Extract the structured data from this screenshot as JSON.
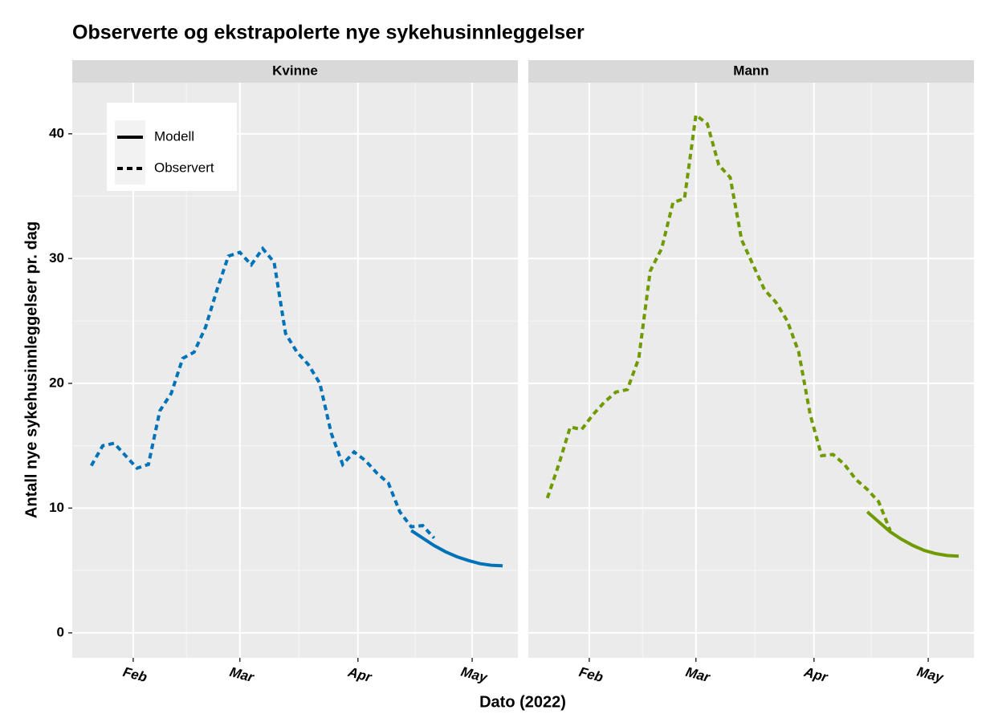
{
  "chart_data": {
    "type": "line",
    "title": "Observerte og ekstrapolerte nye sykehusinnleggelser",
    "x_label": "Dato (2022)",
    "y_label": "Antall nye sykehusinnleggelser pr. dag",
    "x": [
      "2022-01-21",
      "2022-01-24",
      "2022-01-27",
      "2022-01-30",
      "2022-02-02",
      "2022-02-05",
      "2022-02-08",
      "2022-02-11",
      "2022-02-14",
      "2022-02-17",
      "2022-02-20",
      "2022-02-23",
      "2022-02-26",
      "2022-03-01",
      "2022-03-04",
      "2022-03-07",
      "2022-03-10",
      "2022-03-13",
      "2022-03-16",
      "2022-03-19",
      "2022-03-22",
      "2022-03-25",
      "2022-03-28",
      "2022-03-31",
      "2022-04-03",
      "2022-04-06",
      "2022-04-09",
      "2022-04-12",
      "2022-04-15",
      "2022-04-18",
      "2022-04-21",
      "2022-04-24",
      "2022-04-27",
      "2022-04-30",
      "2022-05-03",
      "2022-05-06",
      "2022-05-09"
    ],
    "xlim": [
      "2022-01-16",
      "2022-05-13"
    ],
    "xticks": [
      {
        "value": "2022-02-01",
        "label": "Feb"
      },
      {
        "value": "2022-03-01",
        "label": "Mar"
      },
      {
        "value": "2022-04-01",
        "label": "Apr"
      },
      {
        "value": "2022-05-01",
        "label": "May"
      }
    ],
    "ylim": [
      -2,
      44.1
    ],
    "yticks": [
      0,
      10,
      20,
      30,
      40
    ],
    "grid": true,
    "legend": "top-left",
    "facets": [
      {
        "name": "Kvinne",
        "series": [
          {
            "name": "Modell",
            "color": "#0072b8",
            "dash": "solid",
            "values": [
              null,
              null,
              null,
              null,
              null,
              null,
              null,
              null,
              null,
              null,
              null,
              null,
              null,
              null,
              null,
              null,
              null,
              null,
              null,
              null,
              null,
              null,
              null,
              null,
              null,
              null,
              null,
              null,
              8.2,
              7.6,
              7.0,
              6.5,
              6.1,
              5.8,
              5.55,
              5.42,
              5.38
            ]
          },
          {
            "name": "Observert",
            "color": "#0072b8",
            "dash": "dashed",
            "values": [
              13.4,
              15.0,
              15.2,
              14.2,
              13.2,
              13.5,
              17.8,
              19.2,
              22.0,
              22.5,
              24.5,
              27.5,
              30.2,
              30.5,
              29.5,
              30.8,
              29.7,
              24.0,
              22.5,
              21.5,
              20.0,
              16.0,
              13.5,
              14.5,
              13.8,
              12.8,
              12.0,
              9.7,
              8.5,
              8.6,
              7.6,
              null,
              null,
              null,
              null,
              null,
              null
            ]
          }
        ]
      },
      {
        "name": "Mann",
        "series": [
          {
            "name": "Modell",
            "color": "#6f9a00",
            "dash": "solid",
            "values": [
              null,
              null,
              null,
              null,
              null,
              null,
              null,
              null,
              null,
              null,
              null,
              null,
              null,
              null,
              null,
              null,
              null,
              null,
              null,
              null,
              null,
              null,
              null,
              null,
              null,
              null,
              null,
              null,
              9.7,
              8.9,
              8.1,
              7.5,
              7.0,
              6.6,
              6.35,
              6.2,
              6.15
            ]
          },
          {
            "name": "Observert",
            "color": "#6f9a00",
            "dash": "dashed",
            "values": [
              10.8,
              13.5,
              16.5,
              16.3,
              17.5,
              18.5,
              19.3,
              19.5,
              22.0,
              29.0,
              30.8,
              34.5,
              34.8,
              41.5,
              40.8,
              37.5,
              36.5,
              31.5,
              29.5,
              27.5,
              26.5,
              25.0,
              22.5,
              17.5,
              14.2,
              14.3,
              13.5,
              12.3,
              11.5,
              10.5,
              8.2,
              null,
              null,
              null,
              null,
              null,
              null
            ]
          }
        ]
      }
    ]
  }
}
